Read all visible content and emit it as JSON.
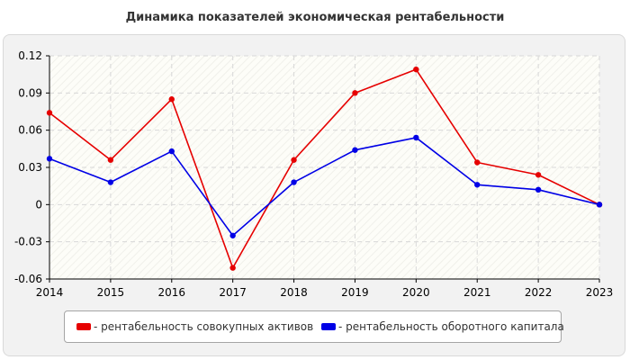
{
  "chart_data": {
    "type": "line",
    "title": "Динамика показателей экономическая рентабельности",
    "categories": [
      "2014",
      "2015",
      "2016",
      "2017",
      "2018",
      "2019",
      "2020",
      "2021",
      "2022",
      "2023"
    ],
    "yticks": [
      "0.12",
      "0.09",
      "0.06",
      "0.03",
      "0",
      "-0.03",
      "-0.06"
    ],
    "ylim": [
      -0.06,
      0.12
    ],
    "series": [
      {
        "name": "- рентабельность совокупных активов",
        "color": "#e60000",
        "values": [
          0.074,
          0.036,
          0.085,
          -0.051,
          0.036,
          0.09,
          0.109,
          0.034,
          0.024,
          0.0
        ]
      },
      {
        "name": "- рентабельность оборотного капитала",
        "color": "#0000e6",
        "values": [
          0.037,
          0.018,
          0.043,
          -0.025,
          0.018,
          0.044,
          0.054,
          0.016,
          0.012,
          0.0
        ]
      }
    ],
    "legend_position": "bottom",
    "grid": true
  }
}
